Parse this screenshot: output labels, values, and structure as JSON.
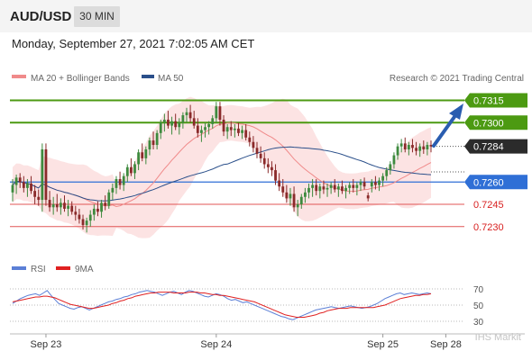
{
  "header": {
    "symbol": "AUD/USD",
    "timeframe": "30 MIN",
    "datetime": "Monday, September 27, 2021 7:02:05 AM CET"
  },
  "legend": {
    "ma20_label": "MA 20 + Bollinger Bands",
    "ma20_color": "#f08a8a",
    "ma50_label": "MA 50",
    "ma50_color": "#2a4f8a",
    "copyright": "Research © 2021 Trading Central"
  },
  "watermark": "IHS Markit",
  "chart_data": [
    {
      "type": "candlestick",
      "ylim": [
        0.7225,
        0.7322
      ],
      "price_grid": [
        0.723,
        0.7245,
        0.726,
        0.7284
      ],
      "current_price": 0.7284,
      "pivot": 0.726,
      "resistances": [
        0.73,
        0.7315
      ],
      "supports": [
        0.7245,
        0.723
      ],
      "levels": [
        {
          "label": "0.7315",
          "value": 0.7315,
          "kind": "resistance"
        },
        {
          "label": "0.7300",
          "value": 0.73,
          "kind": "resistance"
        },
        {
          "label": "0.7284",
          "value": 0.7284,
          "kind": "current"
        },
        {
          "label": "0.7260",
          "value": 0.726,
          "kind": "pivot"
        },
        {
          "label": "0.7245",
          "value": 0.7245,
          "kind": "support"
        },
        {
          "label": "0.7230",
          "value": 0.723,
          "kind": "support"
        }
      ],
      "x_ticks": [
        "Sep 23",
        "Sep 24",
        "Sep 25",
        "Sep 28"
      ],
      "x_tick_index": [
        9,
        55,
        100,
        117
      ],
      "ohlc": [
        [
          0.7253,
          0.7262,
          0.7247,
          0.7258
        ],
        [
          0.7258,
          0.7265,
          0.7252,
          0.7263
        ],
        [
          0.7263,
          0.7266,
          0.7256,
          0.726
        ],
        [
          0.726,
          0.7264,
          0.7253,
          0.7256
        ],
        [
          0.7256,
          0.7262,
          0.725,
          0.7259
        ],
        [
          0.7259,
          0.7264,
          0.7252,
          0.7254
        ],
        [
          0.7254,
          0.7258,
          0.7245,
          0.725
        ],
        [
          0.725,
          0.7255,
          0.7244,
          0.7248
        ],
        [
          0.7248,
          0.7286,
          0.724,
          0.7282
        ],
        [
          0.7282,
          0.7286,
          0.7244,
          0.7248
        ],
        [
          0.7248,
          0.7254,
          0.724,
          0.7243
        ],
        [
          0.7243,
          0.725,
          0.7238,
          0.7245
        ],
        [
          0.7245,
          0.7252,
          0.724,
          0.7243
        ],
        [
          0.7243,
          0.7249,
          0.7238,
          0.7246
        ],
        [
          0.7246,
          0.7251,
          0.724,
          0.7242
        ],
        [
          0.7242,
          0.7248,
          0.7237,
          0.7244
        ],
        [
          0.7244,
          0.7247,
          0.7238,
          0.724
        ],
        [
          0.724,
          0.7244,
          0.7234,
          0.7238
        ],
        [
          0.7238,
          0.7242,
          0.7232,
          0.7235
        ],
        [
          0.7235,
          0.7238,
          0.7228,
          0.7231
        ],
        [
          0.7231,
          0.7236,
          0.7226,
          0.7234
        ],
        [
          0.7234,
          0.7241,
          0.723,
          0.7238
        ],
        [
          0.7238,
          0.7245,
          0.7234,
          0.7242
        ],
        [
          0.7242,
          0.7247,
          0.7237,
          0.724
        ],
        [
          0.724,
          0.7248,
          0.7236,
          0.7246
        ],
        [
          0.7246,
          0.7251,
          0.7241,
          0.7244
        ],
        [
          0.7244,
          0.7255,
          0.7242,
          0.7253
        ],
        [
          0.7253,
          0.7259,
          0.7248,
          0.7256
        ],
        [
          0.7256,
          0.7264,
          0.7252,
          0.7262
        ],
        [
          0.7262,
          0.7267,
          0.7255,
          0.7258
        ],
        [
          0.7258,
          0.7266,
          0.7254,
          0.7264
        ],
        [
          0.7264,
          0.7272,
          0.726,
          0.727
        ],
        [
          0.727,
          0.7276,
          0.7264,
          0.7266
        ],
        [
          0.7266,
          0.7274,
          0.7262,
          0.7272
        ],
        [
          0.7272,
          0.7282,
          0.7268,
          0.728
        ],
        [
          0.728,
          0.7286,
          0.7274,
          0.7276
        ],
        [
          0.7276,
          0.7284,
          0.7272,
          0.7282
        ],
        [
          0.7282,
          0.729,
          0.7278,
          0.7288
        ],
        [
          0.7288,
          0.7294,
          0.7282,
          0.7285
        ],
        [
          0.7285,
          0.7295,
          0.7282,
          0.7293
        ],
        [
          0.7293,
          0.7302,
          0.7289,
          0.73
        ],
        [
          0.73,
          0.7306,
          0.7294,
          0.7302
        ],
        [
          0.7302,
          0.7308,
          0.7296,
          0.7298
        ],
        [
          0.7298,
          0.7304,
          0.7292,
          0.7301
        ],
        [
          0.7301,
          0.7306,
          0.7295,
          0.7297
        ],
        [
          0.7297,
          0.7303,
          0.7292,
          0.73
        ],
        [
          0.73,
          0.7307,
          0.7296,
          0.7305
        ],
        [
          0.7305,
          0.731,
          0.73,
          0.7307
        ],
        [
          0.7307,
          0.7312,
          0.73,
          0.7303
        ],
        [
          0.7303,
          0.7308,
          0.7296,
          0.7298
        ],
        [
          0.7298,
          0.7303,
          0.729,
          0.7293
        ],
        [
          0.7293,
          0.7298,
          0.7287,
          0.7295
        ],
        [
          0.7295,
          0.73,
          0.729,
          0.7297
        ],
        [
          0.7297,
          0.7301,
          0.7292,
          0.7299
        ],
        [
          0.7299,
          0.7305,
          0.7296,
          0.7303
        ],
        [
          0.7303,
          0.7314,
          0.73,
          0.7311
        ],
        [
          0.7311,
          0.7314,
          0.7298,
          0.7302
        ],
        [
          0.7302,
          0.7305,
          0.7291,
          0.7294
        ],
        [
          0.7294,
          0.7299,
          0.7289,
          0.7297
        ],
        [
          0.7297,
          0.7301,
          0.7291,
          0.7295
        ],
        [
          0.7295,
          0.7299,
          0.729,
          0.7296
        ],
        [
          0.7296,
          0.73,
          0.7291,
          0.7293
        ],
        [
          0.7293,
          0.7298,
          0.7289,
          0.7295
        ],
        [
          0.7295,
          0.7299,
          0.7288,
          0.729
        ],
        [
          0.729,
          0.7294,
          0.7284,
          0.7287
        ],
        [
          0.7287,
          0.7291,
          0.728,
          0.7283
        ],
        [
          0.7283,
          0.7287,
          0.7276,
          0.7279
        ],
        [
          0.7279,
          0.7284,
          0.7273,
          0.7276
        ],
        [
          0.7276,
          0.728,
          0.7269,
          0.7272
        ],
        [
          0.7272,
          0.7276,
          0.7266,
          0.727
        ],
        [
          0.727,
          0.7274,
          0.7264,
          0.7268
        ],
        [
          0.7268,
          0.7272,
          0.7258,
          0.7261
        ],
        [
          0.7261,
          0.7266,
          0.7254,
          0.7257
        ],
        [
          0.7257,
          0.7262,
          0.725,
          0.7253
        ],
        [
          0.7253,
          0.7258,
          0.7246,
          0.7249
        ],
        [
          0.7249,
          0.7256,
          0.7244,
          0.7252
        ],
        [
          0.7252,
          0.7257,
          0.724,
          0.7243
        ],
        [
          0.7243,
          0.7248,
          0.7237,
          0.7245
        ],
        [
          0.7245,
          0.7252,
          0.7242,
          0.725
        ],
        [
          0.725,
          0.7256,
          0.7246,
          0.7253
        ],
        [
          0.7253,
          0.7259,
          0.7249,
          0.7256
        ],
        [
          0.7256,
          0.7262,
          0.725,
          0.7258
        ],
        [
          0.7258,
          0.7262,
          0.7251,
          0.7254
        ],
        [
          0.7254,
          0.7259,
          0.7249,
          0.7257
        ],
        [
          0.7257,
          0.7261,
          0.7252,
          0.7255
        ],
        [
          0.7255,
          0.7259,
          0.725,
          0.7256
        ],
        [
          0.7256,
          0.726,
          0.7252,
          0.7258
        ],
        [
          0.7258,
          0.7262,
          0.7253,
          0.7255
        ],
        [
          0.7255,
          0.7259,
          0.725,
          0.7257
        ],
        [
          0.7257,
          0.7261,
          0.7252,
          0.7254
        ],
        [
          0.7254,
          0.7258,
          0.7249,
          0.7256
        ],
        [
          0.7256,
          0.726,
          0.7252,
          0.7258
        ],
        [
          0.7258,
          0.7262,
          0.7253,
          0.7256
        ],
        [
          0.7256,
          0.726,
          0.7251,
          0.7258
        ],
        [
          0.7258,
          0.7262,
          0.7254,
          0.726
        ],
        [
          0.726,
          0.7263,
          0.7255,
          0.7257
        ],
        [
          0.7251,
          0.7253,
          0.7247,
          0.7249
        ],
        [
          0.7257,
          0.7262,
          0.7253,
          0.726
        ],
        [
          0.726,
          0.7264,
          0.7255,
          0.7258
        ],
        [
          0.7258,
          0.7263,
          0.7254,
          0.7261
        ],
        [
          0.7261,
          0.7266,
          0.7257,
          0.7264
        ],
        [
          0.7264,
          0.727,
          0.7261,
          0.7268
        ],
        [
          0.7268,
          0.7274,
          0.7265,
          0.7272
        ],
        [
          0.7272,
          0.728,
          0.7269,
          0.7278
        ],
        [
          0.7278,
          0.7286,
          0.7275,
          0.7284
        ],
        [
          0.7284,
          0.7289,
          0.728,
          0.7286
        ],
        [
          0.7286,
          0.729,
          0.728,
          0.7282
        ],
        [
          0.7282,
          0.7287,
          0.7278,
          0.7285
        ],
        [
          0.7285,
          0.7289,
          0.728,
          0.7283
        ],
        [
          0.7283,
          0.7287,
          0.7278,
          0.7281
        ],
        [
          0.7281,
          0.7286,
          0.7277,
          0.7284
        ],
        [
          0.7284,
          0.7288,
          0.7279,
          0.7282
        ],
        [
          0.7282,
          0.7287,
          0.7278,
          0.7285
        ],
        [
          0.7285,
          0.7288,
          0.728,
          0.7284
        ]
      ]
    },
    {
      "type": "line",
      "indicator": "RSI",
      "ylim": [
        20,
        80
      ],
      "levels": [
        30,
        50,
        70
      ],
      "series": [
        {
          "name": "RSI",
          "color": "#5b7fd6",
          "values": [
            52,
            55,
            58,
            60,
            62,
            63,
            64,
            62,
            65,
            68,
            62,
            57,
            52,
            50,
            48,
            46,
            45,
            47,
            48,
            46,
            44,
            46,
            48,
            50,
            52,
            54,
            55,
            57,
            58,
            60,
            61,
            63,
            64,
            66,
            67,
            68,
            67,
            66,
            64,
            62,
            64,
            66,
            67,
            65,
            63,
            66,
            68,
            67,
            65,
            63,
            61,
            60,
            62,
            64,
            63,
            61,
            58,
            56,
            57,
            55,
            53,
            54,
            52,
            50,
            48,
            46,
            44,
            42,
            40,
            38,
            36,
            35,
            33,
            32,
            34,
            36,
            38,
            40,
            42,
            44,
            45,
            46,
            47,
            48,
            47,
            46,
            47,
            48,
            49,
            48,
            47,
            46,
            47,
            48,
            50,
            52,
            55,
            58,
            60,
            62,
            64,
            65,
            63,
            64,
            65,
            64,
            63,
            64,
            65,
            64
          ]
        },
        {
          "name": "9MA",
          "color": "#e02020",
          "values": [
            54,
            55,
            56,
            57,
            58,
            59,
            60,
            60,
            61,
            61,
            60,
            59,
            57,
            55,
            53,
            51,
            50,
            49,
            48,
            47,
            46,
            46,
            47,
            48,
            49,
            50,
            52,
            53,
            55,
            56,
            58,
            59,
            61,
            62,
            63,
            64,
            65,
            65,
            66,
            66,
            66,
            66,
            65,
            65,
            65,
            65,
            66,
            66,
            66,
            65,
            65,
            64,
            63,
            63,
            62,
            62,
            61,
            60,
            59,
            58,
            57,
            56,
            55,
            54,
            52,
            50,
            48,
            46,
            44,
            42,
            40,
            38,
            37,
            36,
            35,
            35,
            35,
            36,
            37,
            38,
            40,
            41,
            43,
            44,
            45,
            46,
            46,
            46,
            47,
            47,
            47,
            47,
            47,
            47,
            47,
            48,
            49,
            50,
            52,
            54,
            56,
            58,
            59,
            60,
            61,
            62,
            62,
            63,
            63,
            64
          ]
        }
      ]
    }
  ]
}
